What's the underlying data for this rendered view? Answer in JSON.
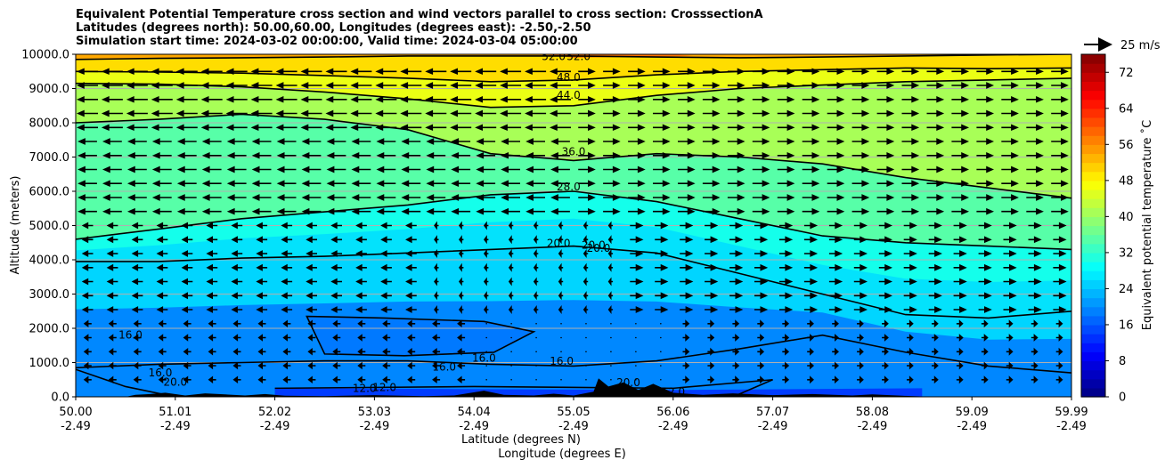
{
  "chart_data": {
    "type": "heatmap",
    "title_lines": [
      "Equivalent Potential Temperature cross section and wind vectors parallel to cross section: CrosssectionA",
      "Latitudes (degrees north): 50.00,60.00, Longitudes (degrees east): -2.50,-2.50",
      "Simulation start time: 2024-03-02 00:00:00, Valid time: 2024-03-04 05:00:00"
    ],
    "ylabel": "Altitude (meters)",
    "xlabel_lat": "Latitude (degrees N)",
    "xlabel_lon": "Longitude (degrees E)",
    "ylim": [
      0,
      10000
    ],
    "y_ticks": [
      "0.0",
      "1000.0",
      "2000.0",
      "3000.0",
      "4000.0",
      "5000.0",
      "6000.0",
      "7000.0",
      "8000.0",
      "9000.0",
      "10000.0"
    ],
    "x_ticks_lat": [
      "50.00",
      "51.01",
      "52.02",
      "53.03",
      "54.04",
      "55.05",
      "56.06",
      "57.07",
      "58.08",
      "59.09",
      "59.99"
    ],
    "x_ticks_lon": [
      "-2.49",
      "-2.49",
      "-2.49",
      "-2.49",
      "-2.49",
      "-2.49",
      "-2.49",
      "-2.49",
      "-2.49",
      "-2.49",
      "-2.49"
    ],
    "colorbar_label": "Equivalent potential temperature ˚C",
    "colorbar_ticks": [
      "0",
      "8",
      "16",
      "24",
      "32",
      "40",
      "48",
      "56",
      "64",
      "72"
    ],
    "colorbar_range": [
      0,
      76
    ],
    "quiver_key": "25 m/s",
    "contour_labels": [
      "52.0",
      "52.0",
      "48.0",
      "44.0",
      "36.0",
      "28.0",
      "20.0",
      "20.0",
      "20.0",
      "16.0",
      "16.0",
      "16.0",
      "16.0",
      "16.0",
      "20.0",
      "12.0",
      "12.0",
      "12.0",
      "20.0"
    ],
    "contour_levels_c": [
      12,
      16,
      20,
      28,
      36,
      44,
      48,
      52
    ],
    "contour_heights_m": {
      "c52": [
        9850,
        9880,
        9900,
        9920,
        9950,
        9950,
        9950,
        9920,
        9900,
        9920,
        9950,
        9980,
        10000
      ],
      "c48": [
        9500,
        9480,
        9450,
        9380,
        9300,
        9200,
        9250,
        9400,
        9500,
        9550,
        9600,
        9580,
        9600
      ],
      "c44": [
        9150,
        9130,
        9050,
        8900,
        8700,
        8450,
        8500,
        8800,
        9000,
        9100,
        9200,
        9250,
        9300
      ],
      "c36": [
        8000,
        8100,
        8250,
        8100,
        7800,
        7100,
        6900,
        7100,
        7000,
        6800,
        6400,
        6100,
        5800
      ],
      "c28": [
        4600,
        4900,
        5200,
        5400,
        5600,
        5900,
        6000,
        5700,
        5200,
        4700,
        4500,
        4400,
        4300
      ],
      "c20": [
        3950,
        3950,
        4050,
        4100,
        4200,
        4300,
        4400,
        4200,
        3600,
        3000,
        2400,
        2300,
        2500
      ],
      "c16": [
        850,
        950,
        1000,
        1050,
        1050,
        950,
        900,
        1050,
        1400,
        1800,
        1300,
        900,
        700
      ]
    },
    "wind_direction_by_altitude_m": {
      "9500": "west",
      "8500": "west",
      "7500": "west-north / east-south split",
      "6000": "west-north / east-south split",
      "4000": "east-dominated south",
      "2000": "mixed weak",
      "500": "weak"
    }
  }
}
